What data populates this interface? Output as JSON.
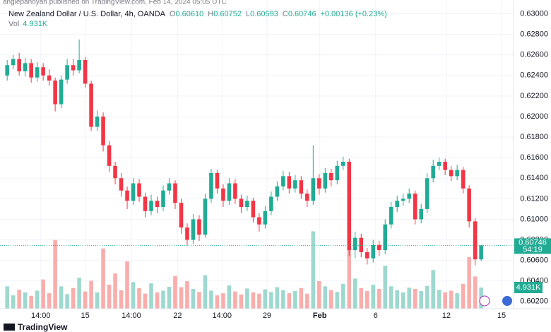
{
  "header": {
    "attribution": "angiepanoyan published on TradingView.com, Feb 14, 2024 05:05 UTC",
    "symbol": "New Zealand Dollar / U.S. Dollar, 4h, OANDA",
    "ohlc": [
      {
        "key": "O",
        "value": "0.60610"
      },
      {
        "key": "H",
        "value": "0.60752"
      },
      {
        "key": "L",
        "value": "0.60593"
      },
      {
        "key": "C",
        "value": "0.60746"
      }
    ],
    "change": "+0.00136 (+0.23%)",
    "volume_key": "Vol",
    "volume_value": "4.931K",
    "countdown": "54:19",
    "brand": "TradingView"
  },
  "chart_data": {
    "type": "candlestick",
    "open": [
      0.624,
      0.625,
      0.6256,
      0.6244,
      0.6252,
      0.6238,
      0.6248,
      0.624,
      0.6235,
      0.6212,
      0.6236,
      0.625,
      0.6245,
      0.6255,
      0.6232,
      0.619,
      0.62,
      0.6172,
      0.6152,
      0.614,
      0.6128,
      0.6118,
      0.6135,
      0.6122,
      0.6108,
      0.6118,
      0.6112,
      0.6128,
      0.6135,
      0.6116,
      0.6092,
      0.608,
      0.61,
      0.6085,
      0.612,
      0.6145,
      0.613,
      0.6118,
      0.6135,
      0.612,
      0.6112,
      0.6118,
      0.6102,
      0.6095,
      0.6108,
      0.6122,
      0.6132,
      0.6142,
      0.613,
      0.6138,
      0.6125,
      0.6118,
      0.614,
      0.613,
      0.6145,
      0.6138,
      0.6152,
      0.6156,
      0.607,
      0.6082,
      0.6068,
      0.6062,
      0.6075,
      0.607,
      0.6095,
      0.6112,
      0.6118,
      0.612,
      0.6125,
      0.61,
      0.611,
      0.614,
      0.6152,
      0.6156,
      0.6148,
      0.6142,
      0.6148,
      0.613,
      0.6098,
      0.6061
    ],
    "high": [
      0.6255,
      0.626,
      0.6262,
      0.6257,
      0.6256,
      0.6253,
      0.6252,
      0.6246,
      0.6238,
      0.624,
      0.6256,
      0.6256,
      0.6275,
      0.6258,
      0.6235,
      0.6206,
      0.6204,
      0.6176,
      0.6156,
      0.6145,
      0.6132,
      0.614,
      0.6139,
      0.6126,
      0.6124,
      0.6122,
      0.6133,
      0.614,
      0.6138,
      0.612,
      0.6096,
      0.6105,
      0.6104,
      0.6125,
      0.6149,
      0.6148,
      0.6134,
      0.614,
      0.6139,
      0.6124,
      0.6123,
      0.6121,
      0.6106,
      0.6113,
      0.6127,
      0.6137,
      0.6147,
      0.6146,
      0.6143,
      0.6142,
      0.6129,
      0.6172,
      0.6144,
      0.615,
      0.6149,
      0.6157,
      0.6161,
      0.6159,
      0.6088,
      0.6086,
      0.6072,
      0.608,
      0.6079,
      0.61,
      0.6117,
      0.6123,
      0.6125,
      0.613,
      0.6128,
      0.6115,
      0.6145,
      0.6158,
      0.616,
      0.6159,
      0.6152,
      0.6153,
      0.6151,
      0.6133,
      0.6101,
      0.60752
    ],
    "low": [
      0.6235,
      0.6246,
      0.624,
      0.6239,
      0.6233,
      0.6234,
      0.6235,
      0.623,
      0.6205,
      0.6208,
      0.6232,
      0.624,
      0.6242,
      0.6228,
      0.6186,
      0.6186,
      0.6166,
      0.6146,
      0.6134,
      0.6122,
      0.611,
      0.6114,
      0.6117,
      0.6102,
      0.6104,
      0.6106,
      0.6108,
      0.6124,
      0.611,
      0.6086,
      0.6074,
      0.6076,
      0.6079,
      0.6082,
      0.6116,
      0.6125,
      0.6112,
      0.6114,
      0.6115,
      0.6106,
      0.6108,
      0.6097,
      0.6088,
      0.6091,
      0.6104,
      0.6118,
      0.6128,
      0.6125,
      0.6126,
      0.612,
      0.6112,
      0.6114,
      0.6124,
      0.6126,
      0.6132,
      0.6134,
      0.6148,
      0.6064,
      0.6062,
      0.6063,
      0.6056,
      0.6058,
      0.6064,
      0.6066,
      0.6091,
      0.6107,
      0.6113,
      0.6116,
      0.6095,
      0.6096,
      0.6106,
      0.6136,
      0.6148,
      0.6143,
      0.6137,
      0.6138,
      0.6125,
      0.6092,
      0.6055,
      0.60593
    ],
    "close": [
      0.625,
      0.6256,
      0.6244,
      0.6252,
      0.6238,
      0.6248,
      0.624,
      0.6235,
      0.6212,
      0.6236,
      0.625,
      0.6245,
      0.6255,
      0.6232,
      0.619,
      0.62,
      0.6172,
      0.6152,
      0.614,
      0.6128,
      0.6118,
      0.6135,
      0.6122,
      0.6108,
      0.6118,
      0.6112,
      0.6128,
      0.6135,
      0.6116,
      0.6092,
      0.608,
      0.61,
      0.6085,
      0.612,
      0.6145,
      0.613,
      0.6118,
      0.6135,
      0.612,
      0.6112,
      0.6118,
      0.6102,
      0.6095,
      0.6108,
      0.6122,
      0.6132,
      0.6142,
      0.613,
      0.6138,
      0.6125,
      0.6118,
      0.614,
      0.613,
      0.6145,
      0.6138,
      0.6152,
      0.6156,
      0.607,
      0.6082,
      0.6068,
      0.6062,
      0.6075,
      0.607,
      0.6095,
      0.6112,
      0.6118,
      0.612,
      0.6125,
      0.61,
      0.611,
      0.614,
      0.6152,
      0.6156,
      0.6148,
      0.6142,
      0.6148,
      0.613,
      0.6098,
      0.6061,
      0.60746
    ],
    "volume": [
      5200,
      3100,
      4400,
      3800,
      3000,
      4200,
      6800,
      3600,
      16000,
      5200,
      3400,
      4800,
      7200,
      4000,
      6500,
      3800,
      14000,
      5600,
      8200,
      4300,
      11000,
      6200,
      4800,
      3500,
      5900,
      3800,
      4200,
      5100,
      7600,
      5000,
      6400,
      4600,
      3900,
      7800,
      4200,
      3100,
      3600,
      5400,
      4000,
      3300,
      4700,
      3800,
      3500,
      4500,
      3900,
      5000,
      4300,
      3600,
      4100,
      4800,
      3500,
      18000,
      6400,
      5200,
      4300,
      3900,
      5800,
      15000,
      7000,
      4800,
      4100,
      5600,
      4600,
      10000,
      5200,
      4300,
      3800,
      4900,
      4600,
      4100,
      5300,
      9000,
      4400,
      3800,
      4200,
      3600,
      5800,
      12000,
      7500,
      4931
    ],
    "up_color": "#22ab94",
    "down_color": "#f23645",
    "up_volume_color": "#9ed8cf",
    "down_volume_color": "#f8aeac",
    "ylim": [
      0.6013,
      0.631
    ],
    "yticks": [
      {
        "value": 0.602,
        "label": "0.60200"
      },
      {
        "value": 0.604,
        "label": "0.60400"
      },
      {
        "value": 0.606,
        "label": "0.60600"
      },
      {
        "value": 0.608,
        "label": "0.60800"
      },
      {
        "value": 0.61,
        "label": "0.61000"
      },
      {
        "value": 0.612,
        "label": "0.61200"
      },
      {
        "value": 0.614,
        "label": "0.61400"
      },
      {
        "value": 0.616,
        "label": "0.61600"
      },
      {
        "value": 0.618,
        "label": "0.61800"
      },
      {
        "value": 0.62,
        "label": "0.62000"
      },
      {
        "value": 0.622,
        "label": "0.62200"
      },
      {
        "value": 0.624,
        "label": "0.62400"
      },
      {
        "value": 0.626,
        "label": "0.62600"
      },
      {
        "value": 0.628,
        "label": "0.62800"
      },
      {
        "value": 0.63,
        "label": "0.63000"
      }
    ],
    "xlim": [
      -1.2,
      84.4
    ],
    "xticks": [
      {
        "value": 5.6,
        "label": "14:00"
      },
      {
        "value": 13,
        "label": "15"
      },
      {
        "value": 20.7,
        "label": "14:00"
      },
      {
        "value": 28.4,
        "label": "22"
      },
      {
        "value": 35.8,
        "label": "14:00"
      },
      {
        "value": 43.3,
        "label": "29"
      },
      {
        "value": 52.1,
        "label": "Feb"
      },
      {
        "value": 61.4,
        "label": "6"
      },
      {
        "value": 73.2,
        "label": "12"
      },
      {
        "value": 82.4,
        "label": "15"
      }
    ],
    "volume_lim": [
      0,
      71000
    ],
    "grid": true
  }
}
